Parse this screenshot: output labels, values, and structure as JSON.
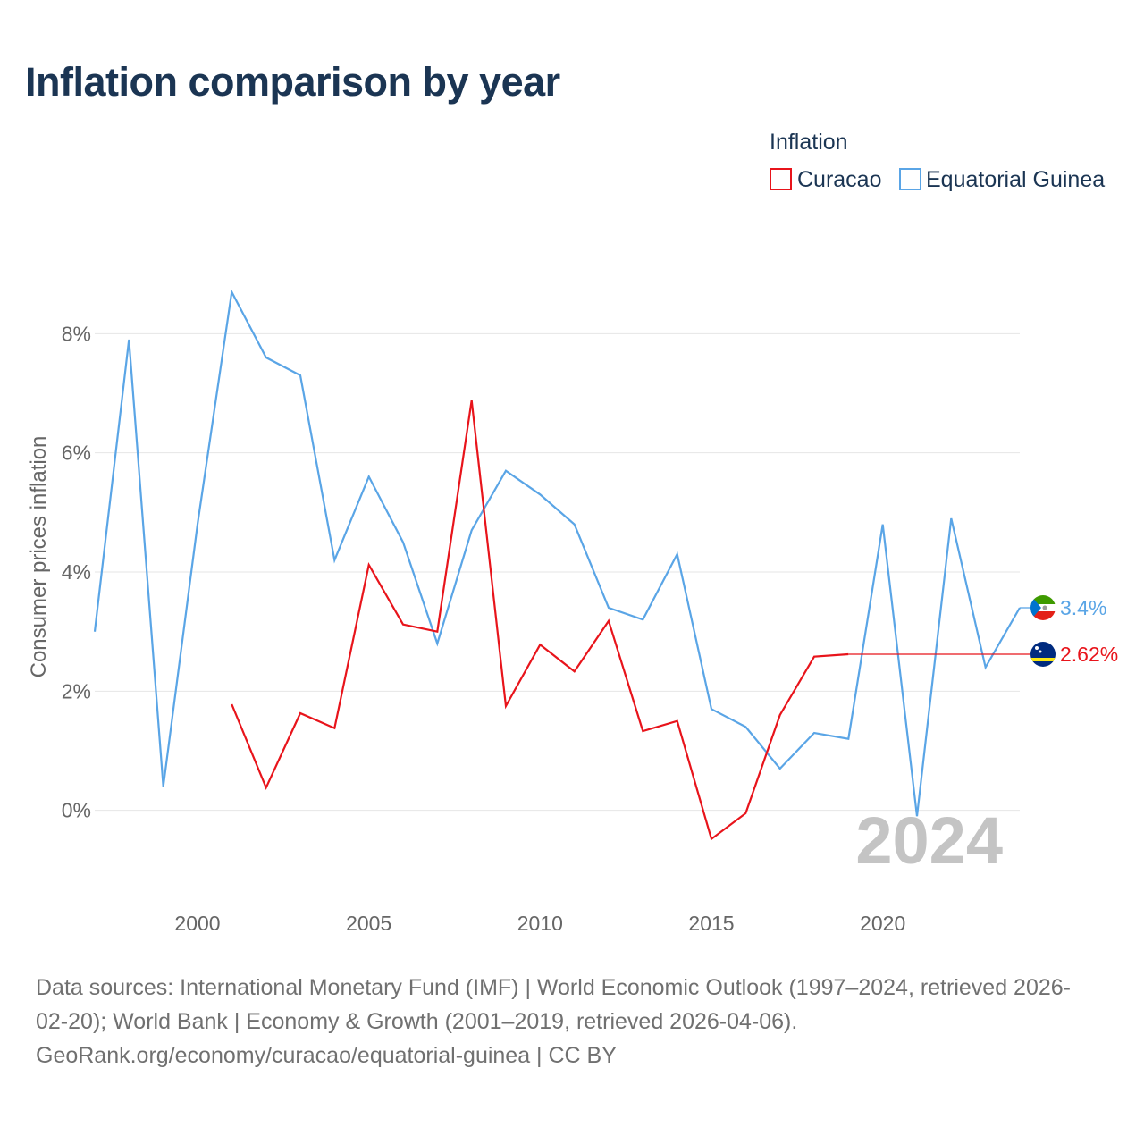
{
  "chart_data": {
    "type": "line",
    "title": "Inflation comparison by year",
    "ylabel": "Consumer prices inflation",
    "xlabel": "",
    "legend_title": "Inflation",
    "legend_position": "top-right",
    "xlim": [
      1997,
      2024
    ],
    "ylim": [
      -1.25,
      9.25
    ],
    "x_ticks": [
      2000,
      2005,
      2010,
      2015,
      2020
    ],
    "x_tick_labels": [
      "2000",
      "2005",
      "2010",
      "2015",
      "2020"
    ],
    "y_ticks": [
      0,
      2,
      4,
      6,
      8
    ],
    "y_tick_labels": [
      "0%",
      "2%",
      "4%",
      "6%",
      "8%"
    ],
    "year_watermark": "2024",
    "grid": true,
    "series": [
      {
        "name": "Curacao",
        "color": "#e8141b",
        "x": [
          2001,
          2002,
          2003,
          2004,
          2005,
          2006,
          2007,
          2008,
          2009,
          2010,
          2011,
          2012,
          2013,
          2014,
          2015,
          2016,
          2017,
          2018,
          2019
        ],
        "values": [
          1.78,
          0.38,
          1.63,
          1.38,
          4.12,
          3.12,
          3.0,
          6.88,
          1.75,
          2.78,
          2.33,
          3.18,
          1.33,
          1.5,
          -0.48,
          -0.05,
          1.6,
          2.58,
          2.62
        ],
        "end_label": "2.62%",
        "end_value": 2.62
      },
      {
        "name": "Equatorial Guinea",
        "color": "#5aa5e6",
        "x": [
          1997,
          1998,
          1999,
          2000,
          2001,
          2002,
          2003,
          2004,
          2005,
          2006,
          2007,
          2008,
          2009,
          2010,
          2011,
          2012,
          2013,
          2014,
          2015,
          2016,
          2017,
          2018,
          2019,
          2020,
          2021,
          2022,
          2023,
          2024
        ],
        "values": [
          3.0,
          7.9,
          0.4,
          4.8,
          8.7,
          7.6,
          7.3,
          4.2,
          5.6,
          4.5,
          2.8,
          4.7,
          5.7,
          5.3,
          4.8,
          3.4,
          3.2,
          4.3,
          1.7,
          1.4,
          0.7,
          1.3,
          1.2,
          4.8,
          -0.1,
          4.9,
          2.4,
          3.4
        ],
        "end_label": "3.4%",
        "end_value": 3.4
      }
    ]
  },
  "footer": {
    "line1": "Data sources: International Monetary Fund (IMF) | World Economic Outlook (1997–2024, retrieved 2026-",
    "line2": "02-20); World Bank | Economy & Growth (2001–2019, retrieved 2026-04-06).",
    "line3": "GeoRank.org/economy/curacao/equatorial-guinea | CC BY"
  }
}
